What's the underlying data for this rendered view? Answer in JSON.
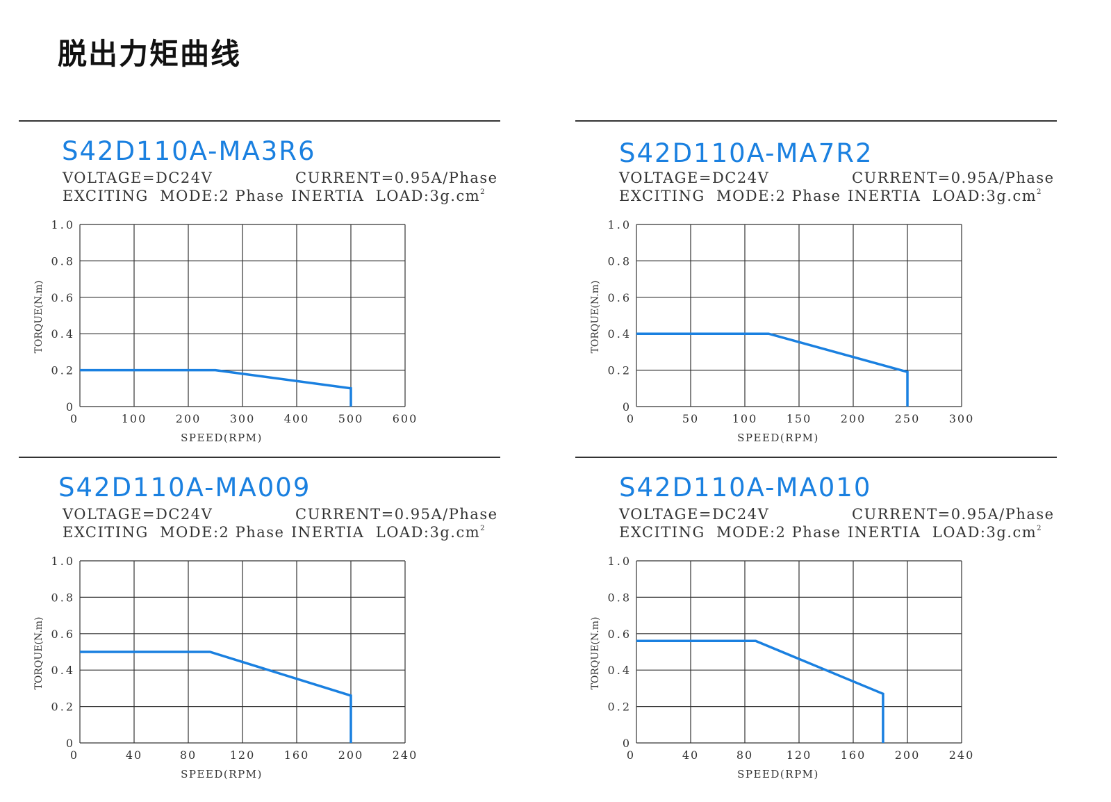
{
  "page": {
    "title": "脱出力矩曲线"
  },
  "colors": {
    "curve": "#1a80e0",
    "grid": "#333333",
    "title": "#1a80e0"
  },
  "chart_data": [
    {
      "type": "line",
      "model": "S42D110A-MA3R6",
      "specs": {
        "voltage": "VOLTAGE=DC24V",
        "current": "CURRENT=0.95A/Phase",
        "mode": "EXCITING  MODE:2 Phase",
        "inertia": "INERTIA  LOAD:3g.cm",
        "inertia_sup": "2"
      },
      "xlabel": "SPEED(RPM)",
      "ylabel": "TORQUE(N.m)",
      "xlim": [
        0,
        600
      ],
      "ylim": [
        0,
        1.0
      ],
      "xticks": [
        "0",
        "100",
        "200",
        "300",
        "400",
        "500",
        "600"
      ],
      "yticks": [
        "0",
        "0.2",
        "0.4",
        "0.6",
        "0.8",
        "1.0"
      ],
      "grid": true,
      "x": [
        0,
        250,
        500,
        500
      ],
      "y": [
        0.2,
        0.2,
        0.1,
        0
      ]
    },
    {
      "type": "line",
      "model": "S42D110A-MA7R2",
      "specs": {
        "voltage": "VOLTAGE=DC24V",
        "current": "CURRENT=0.95A/Phase",
        "mode": "EXCITING  MODE:2 Phase",
        "inertia": "INERTIA  LOAD:3g.cm",
        "inertia_sup": "2"
      },
      "xlabel": "SPEED(RPM)",
      "ylabel": "TORQUE(N.m)",
      "xlim": [
        0,
        300
      ],
      "ylim": [
        0,
        1.0
      ],
      "xticks": [
        "0",
        "50",
        "100",
        "150",
        "200",
        "250",
        "300"
      ],
      "yticks": [
        "0",
        "0.2",
        "0.4",
        "0.6",
        "0.8",
        "1.0"
      ],
      "grid": true,
      "x": [
        0,
        122,
        250,
        250
      ],
      "y": [
        0.4,
        0.4,
        0.19,
        0
      ]
    },
    {
      "type": "line",
      "model": "S42D110A-MA009",
      "specs": {
        "voltage": "VOLTAGE=DC24V",
        "current": "CURRENT=0.95A/Phase",
        "mode": "EXCITING  MODE:2 Phase",
        "inertia": "INERTIA  LOAD:3g.cm",
        "inertia_sup": "2"
      },
      "xlabel": "SPEED(RPM)",
      "ylabel": "TORQUE(N.m)",
      "xlim": [
        0,
        240
      ],
      "ylim": [
        0,
        1.0
      ],
      "xticks": [
        "0",
        "40",
        "80",
        "120",
        "160",
        "200",
        "240"
      ],
      "yticks": [
        "0",
        "0.2",
        "0.4",
        "0.6",
        "0.8",
        "1.0"
      ],
      "grid": true,
      "x": [
        0,
        96,
        200,
        200
      ],
      "y": [
        0.5,
        0.5,
        0.26,
        0
      ]
    },
    {
      "type": "line",
      "model": "S42D110A-MA010",
      "specs": {
        "voltage": "VOLTAGE=DC24V",
        "current": "CURRENT=0.95A/Phase",
        "mode": "EXCITING  MODE:2 Phase",
        "inertia": "INERTIA  LOAD:3g.cm",
        "inertia_sup": "2"
      },
      "xlabel": "SPEED(RPM)",
      "ylabel": "TORQUE(N.m)",
      "xlim": [
        0,
        240
      ],
      "ylim": [
        0,
        1.0
      ],
      "xticks": [
        "0",
        "40",
        "80",
        "120",
        "160",
        "200",
        "240"
      ],
      "yticks": [
        "0",
        "0.2",
        "0.4",
        "0.6",
        "0.8",
        "1.0"
      ],
      "grid": true,
      "x": [
        0,
        88,
        182,
        182
      ],
      "y": [
        0.56,
        0.56,
        0.27,
        0
      ]
    }
  ]
}
